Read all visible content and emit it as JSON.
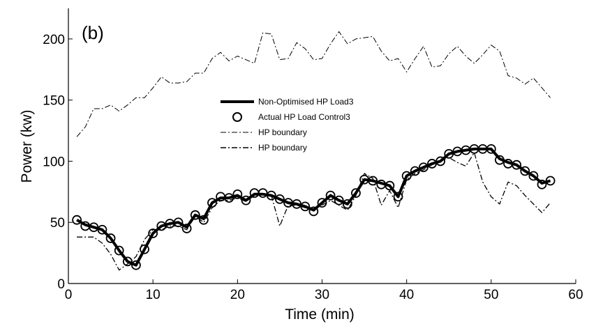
{
  "chart_data": {
    "type": "line",
    "panel_label": "(b)",
    "xlabel": "Time (min)",
    "ylabel": "Power (kw)",
    "xlim": [
      0,
      60
    ],
    "ylim": [
      0,
      225
    ],
    "x_ticks": [
      0,
      10,
      20,
      30,
      40,
      50,
      60
    ],
    "y_ticks": [
      0,
      50,
      100,
      150,
      200
    ],
    "grid": false,
    "legend_position": "center",
    "series": [
      {
        "name": "Non-Optimised HP Load3",
        "style": "solid-thick",
        "x": [
          1,
          2,
          3,
          4,
          5,
          6,
          7,
          8,
          9,
          10,
          11,
          12,
          13,
          14,
          15,
          16,
          17,
          18,
          19,
          20,
          21,
          22,
          23,
          24,
          25,
          26,
          27,
          28,
          29,
          30,
          31,
          32,
          33,
          34,
          35,
          36,
          37,
          38,
          39,
          40,
          41,
          42,
          43,
          44,
          45,
          46,
          47,
          48,
          49,
          50,
          51,
          52,
          53,
          54,
          55,
          56,
          57
        ],
        "values": [
          52,
          48,
          46,
          44,
          37,
          27,
          18,
          15,
          28,
          41,
          47,
          49,
          50,
          46,
          56,
          53,
          66,
          70,
          70,
          72,
          68,
          73,
          73,
          72,
          69,
          66,
          65,
          63,
          60,
          66,
          72,
          68,
          65,
          74,
          85,
          84,
          82,
          80,
          71,
          88,
          92,
          95,
          98,
          100,
          106,
          108,
          109,
          110,
          110,
          110,
          102,
          99,
          97,
          92,
          88,
          82,
          84
        ]
      },
      {
        "name": "Actual HP Load Control3",
        "style": "circle-markers",
        "x": [
          1,
          2,
          3,
          4,
          5,
          6,
          7,
          8,
          9,
          10,
          11,
          12,
          13,
          14,
          15,
          16,
          17,
          18,
          19,
          20,
          21,
          22,
          23,
          24,
          25,
          26,
          27,
          28,
          29,
          30,
          31,
          32,
          33,
          34,
          35,
          36,
          37,
          38,
          39,
          40,
          41,
          42,
          43,
          44,
          45,
          46,
          47,
          48,
          49,
          50,
          51,
          52,
          53,
          54,
          55,
          56,
          57
        ],
        "values": [
          52,
          47,
          46,
          44,
          37,
          27,
          18,
          15,
          28,
          41,
          47,
          49,
          50,
          45,
          56,
          52,
          66,
          71,
          70,
          73,
          68,
          74,
          74,
          72,
          69,
          66,
          65,
          63,
          59,
          66,
          72,
          68,
          65,
          74,
          85,
          84,
          81,
          80,
          71,
          88,
          92,
          95,
          98,
          100,
          106,
          108,
          109,
          110,
          110,
          110,
          101,
          98,
          97,
          92,
          88,
          81,
          84
        ]
      },
      {
        "name": "HP boundary",
        "style": "dash-dot-upper",
        "x": [
          1,
          2,
          3,
          4,
          5,
          6,
          7,
          8,
          9,
          10,
          11,
          12,
          13,
          14,
          15,
          16,
          17,
          18,
          19,
          20,
          21,
          22,
          23,
          24,
          25,
          26,
          27,
          28,
          29,
          30,
          31,
          32,
          33,
          34,
          35,
          36,
          37,
          38,
          39,
          40,
          41,
          42,
          43,
          44,
          45,
          46,
          47,
          48,
          49,
          50,
          51,
          52,
          53,
          54,
          55,
          56,
          57
        ],
        "values": [
          120,
          128,
          143,
          143,
          146,
          141,
          146,
          152,
          152,
          160,
          169,
          164,
          164,
          165,
          172,
          172,
          184,
          189,
          182,
          186,
          183,
          180,
          205,
          204,
          183,
          184,
          197,
          192,
          183,
          184,
          196,
          206,
          196,
          200,
          201,
          202,
          190,
          182,
          184,
          173,
          184,
          194,
          177,
          178,
          188,
          194,
          186,
          180,
          187,
          195,
          190,
          170,
          168,
          163,
          168,
          160,
          152
        ]
      },
      {
        "name": "HP boundary",
        "style": "dash-dot-lower",
        "x": [
          1,
          2,
          3,
          4,
          5,
          6,
          7,
          8,
          9,
          10,
          11,
          12,
          13,
          14,
          15,
          16,
          17,
          18,
          19,
          20,
          21,
          22,
          23,
          24,
          25,
          26,
          27,
          28,
          29,
          30,
          31,
          32,
          33,
          34,
          35,
          36,
          37,
          38,
          39,
          40,
          41,
          42,
          43,
          44,
          45,
          46,
          47,
          48,
          49,
          50,
          51,
          52,
          53,
          54,
          55,
          56,
          57
        ],
        "values": [
          38,
          38,
          38,
          33,
          24,
          11,
          16,
          22,
          36,
          44,
          44,
          47,
          47,
          44,
          55,
          50,
          62,
          68,
          68,
          70,
          67,
          72,
          73,
          72,
          47,
          64,
          64,
          62,
          61,
          64,
          68,
          64,
          60,
          72,
          90,
          86,
          64,
          76,
          62,
          85,
          90,
          93,
          97,
          100,
          103,
          99,
          96,
          107,
          83,
          71,
          65,
          83,
          80,
          72,
          65,
          58,
          66
        ]
      }
    ]
  }
}
